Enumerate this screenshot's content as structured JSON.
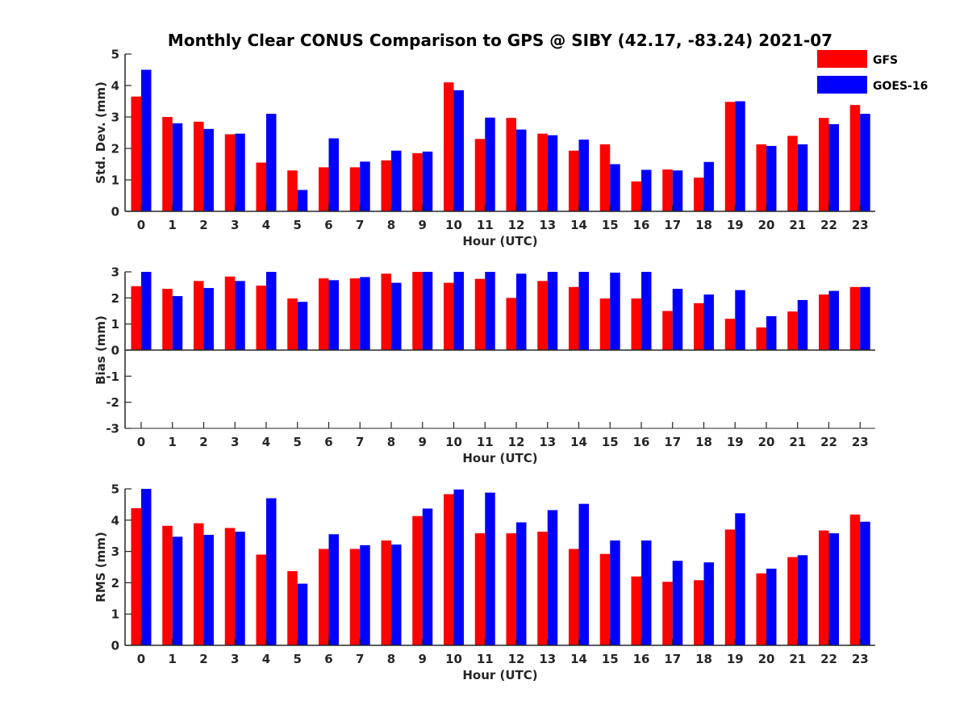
{
  "chart_data": {
    "type": "bar",
    "title": "Monthly Clear CONUS Comparison to GPS @ SIBY (42.17, -83.24) 2021-07",
    "legend": {
      "placement": "top-right",
      "entries": [
        {
          "name": "GFS",
          "color": "#ff0000"
        },
        {
          "name": "GOES-16",
          "color": "#0000ff"
        }
      ]
    },
    "categories": [
      "0",
      "1",
      "2",
      "3",
      "4",
      "5",
      "6",
      "7",
      "8",
      "9",
      "10",
      "11",
      "12",
      "13",
      "14",
      "15",
      "16",
      "17",
      "18",
      "19",
      "20",
      "21",
      "22",
      "23"
    ],
    "panels": [
      {
        "name": "std-dev",
        "xlabel": "Hour (UTC)",
        "ylabel": "Std. Dev. (mm)",
        "ylim": [
          0,
          5
        ],
        "yticks": [
          "0",
          "1",
          "2",
          "3",
          "4",
          "5"
        ],
        "series": [
          {
            "name": "GFS",
            "color": "#ff0000",
            "values": [
              3.65,
              3.0,
              2.85,
              2.45,
              1.55,
              1.3,
              1.4,
              1.4,
              1.62,
              1.85,
              4.1,
              2.3,
              2.97,
              2.47,
              1.93,
              2.13,
              0.95,
              1.33,
              1.07,
              3.48,
              2.13,
              2.4,
              2.97,
              3.38
            ]
          },
          {
            "name": "GOES-16",
            "color": "#0000ff",
            "values": [
              4.5,
              2.8,
              2.62,
              2.47,
              3.1,
              0.68,
              2.32,
              1.58,
              1.93,
              1.9,
              3.85,
              2.98,
              2.6,
              2.42,
              2.28,
              1.5,
              1.32,
              1.3,
              1.57,
              3.5,
              2.08,
              2.13,
              2.77,
              3.1
            ]
          }
        ]
      },
      {
        "name": "bias",
        "xlabel": "Hour (UTC)",
        "ylabel": "Bias (mm)",
        "ylim": [
          -3,
          3
        ],
        "yticks": [
          "-3",
          "-2",
          "-1",
          "0",
          "1",
          "2",
          "3"
        ],
        "series": [
          {
            "name": "GFS",
            "color": "#ff0000",
            "values": [
              2.45,
              2.35,
              2.65,
              2.82,
              2.47,
              1.98,
              2.75,
              2.75,
              2.93,
              3.0,
              2.58,
              2.73,
              2.0,
              2.65,
              2.42,
              1.98,
              1.98,
              1.5,
              1.8,
              1.2,
              0.87,
              1.48,
              2.13,
              2.42
            ]
          },
          {
            "name": "GOES-16",
            "color": "#0000ff",
            "values": [
              3.0,
              2.07,
              2.38,
              2.65,
              3.0,
              1.85,
              2.68,
              2.8,
              2.58,
              3.0,
              3.0,
              3.0,
              2.93,
              3.0,
              3.0,
              2.97,
              3.0,
              2.35,
              2.13,
              2.3,
              1.3,
              1.92,
              2.27,
              2.42
            ]
          }
        ]
      },
      {
        "name": "rms",
        "xlabel": "Hour (UTC)",
        "ylabel": "RMS (mm)",
        "ylim": [
          0,
          5
        ],
        "yticks": [
          "0",
          "1",
          "2",
          "3",
          "4",
          "5"
        ],
        "series": [
          {
            "name": "GFS",
            "color": "#ff0000",
            "values": [
              4.38,
              3.82,
              3.9,
              3.75,
              2.9,
              2.37,
              3.08,
              3.08,
              3.35,
              4.13,
              4.83,
              3.58,
              3.58,
              3.63,
              3.08,
              2.92,
              2.2,
              2.03,
              2.08,
              3.7,
              2.3,
              2.82,
              3.67,
              4.18
            ]
          },
          {
            "name": "GOES-16",
            "color": "#0000ff",
            "values": [
              5.0,
              3.47,
              3.53,
              3.63,
              4.7,
              1.97,
              3.55,
              3.2,
              3.22,
              4.37,
              4.98,
              4.88,
              3.93,
              4.32,
              4.52,
              3.35,
              3.35,
              2.7,
              2.65,
              4.22,
              2.45,
              2.88,
              3.58,
              3.95
            ]
          }
        ]
      }
    ]
  }
}
